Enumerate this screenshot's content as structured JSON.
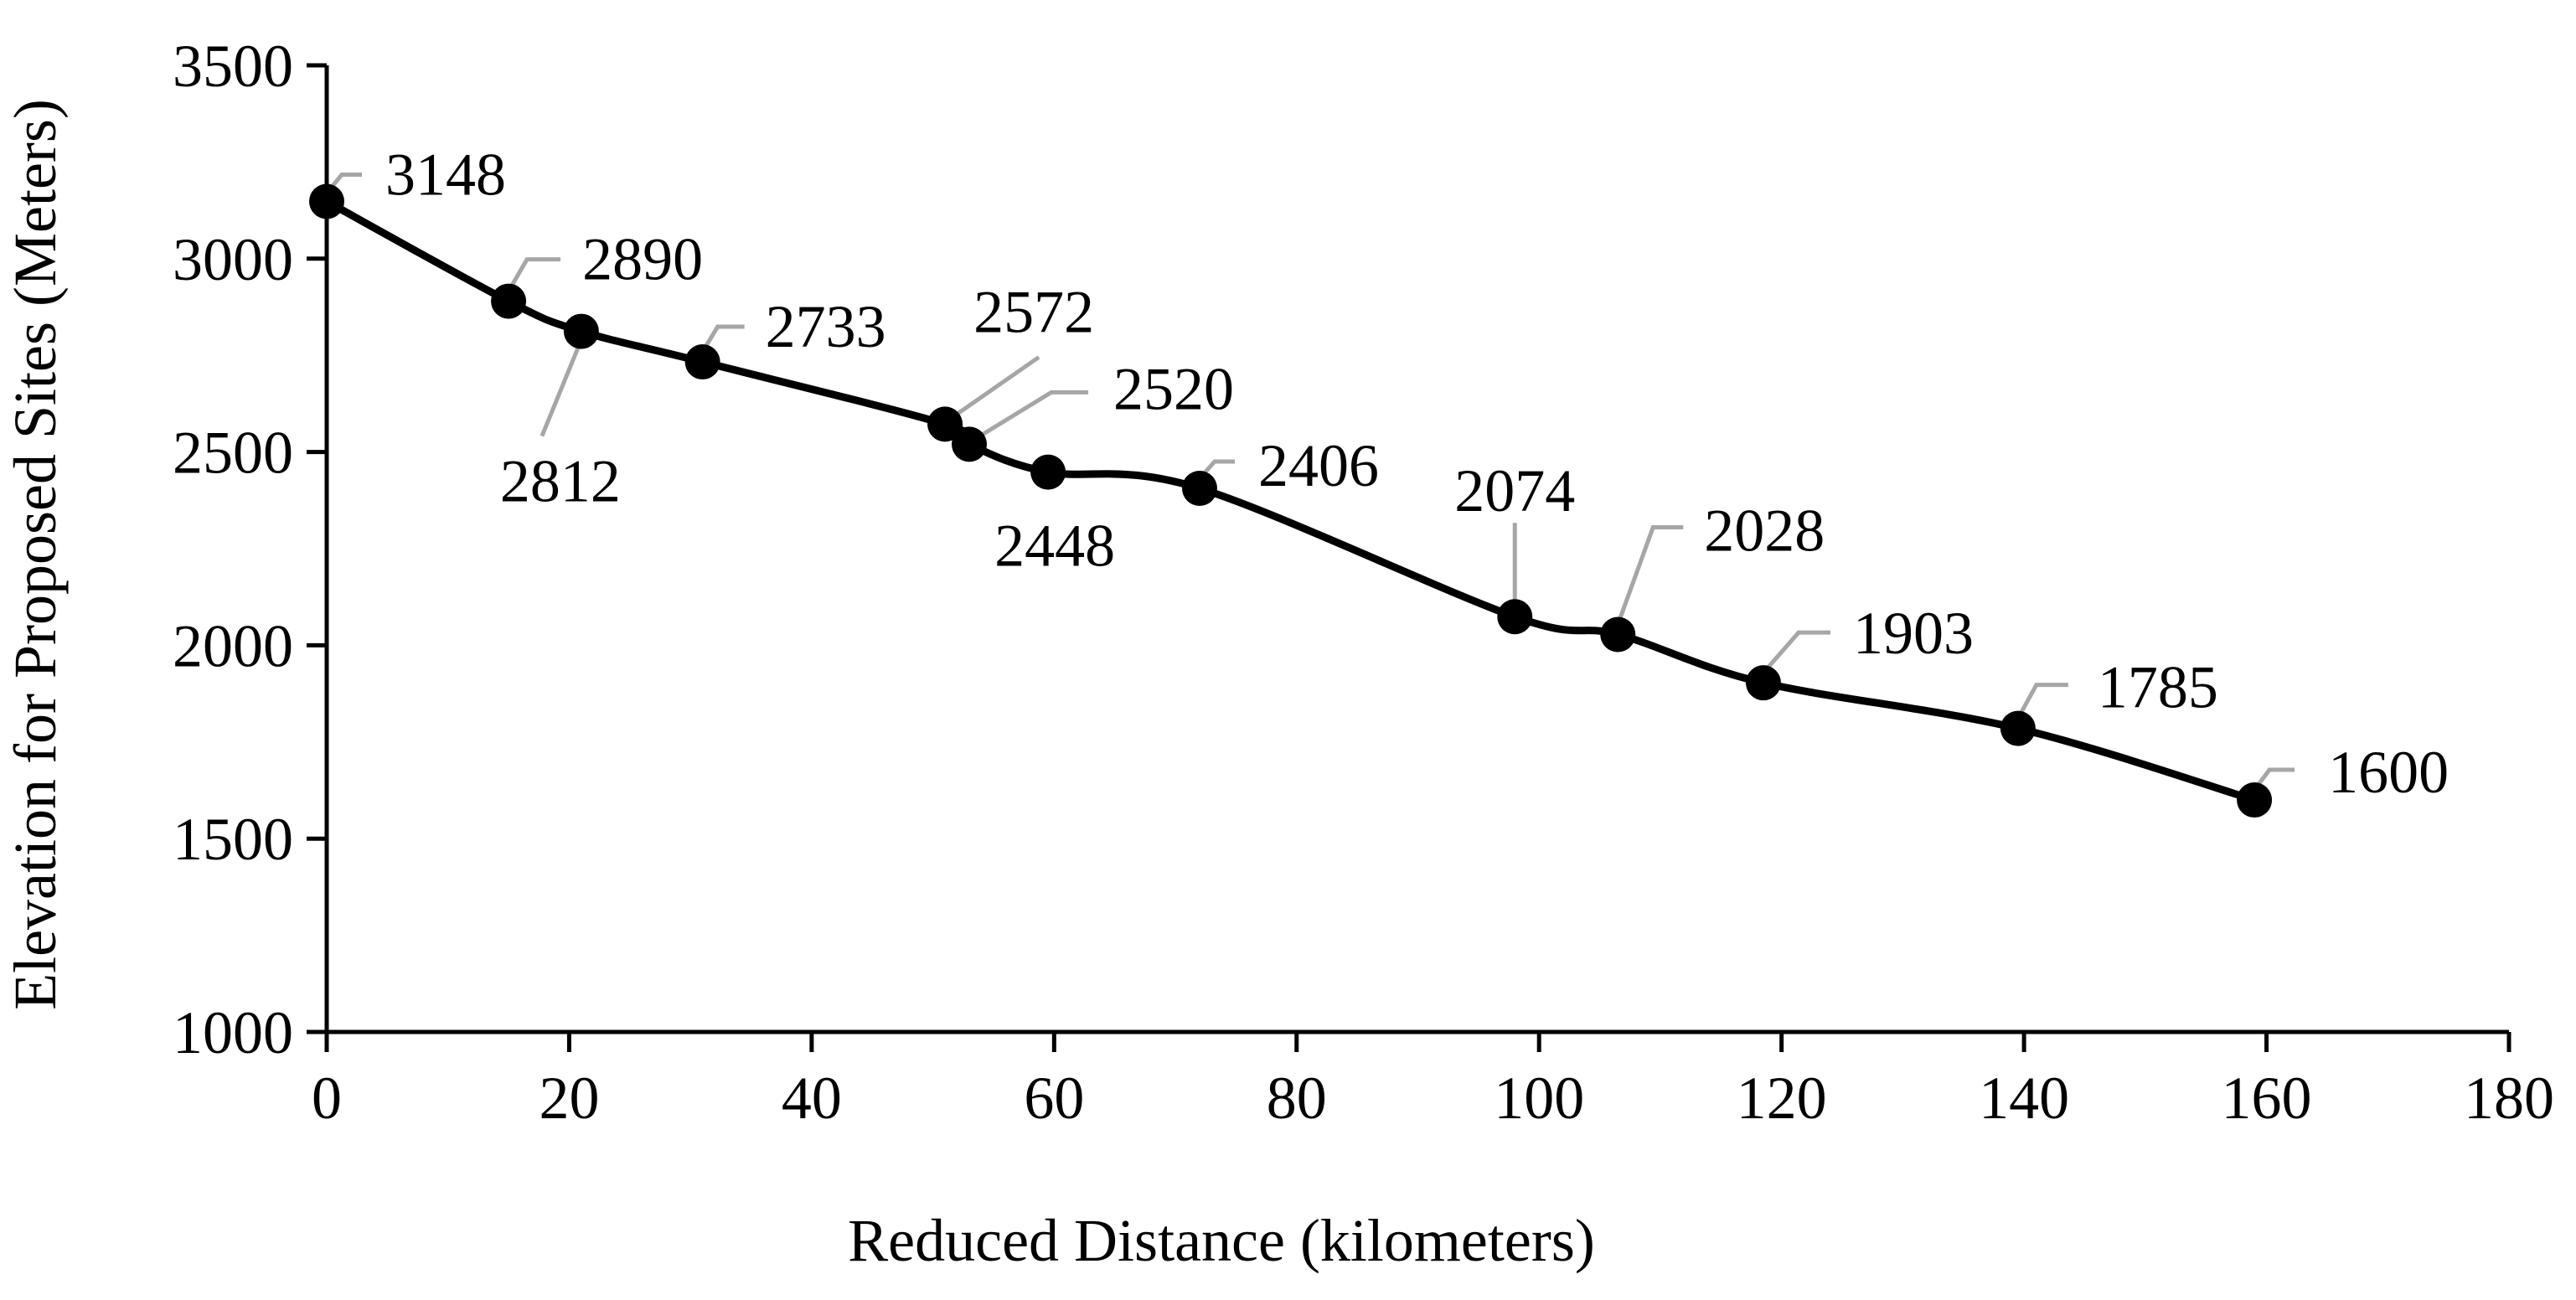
{
  "chart_data": {
    "type": "line",
    "title": "",
    "xlabel": "Reduced Distance (kilometers)",
    "ylabel": "Elevation for Proposed Sites (Meters)",
    "xlim": [
      0,
      180
    ],
    "ylim": [
      1000,
      3500
    ],
    "x_ticks": [
      0,
      20,
      40,
      60,
      80,
      100,
      120,
      140,
      160,
      180
    ],
    "y_ticks": [
      1000,
      1500,
      2000,
      2500,
      3000,
      3500
    ],
    "grid": false,
    "smoothed": true,
    "line_color": "#000000",
    "leader_color": "#A6A6A6",
    "series": [
      {
        "points": [
          {
            "x": 0,
            "y": 3148,
            "label": "3148"
          },
          {
            "x": 15,
            "y": 2890,
            "label": "2890"
          },
          {
            "x": 21,
            "y": 2812,
            "label": "2812"
          },
          {
            "x": 31,
            "y": 2733,
            "label": "2733"
          },
          {
            "x": 51,
            "y": 2572,
            "label": "2572"
          },
          {
            "x": 53,
            "y": 2520,
            "label": "2520"
          },
          {
            "x": 59.5,
            "y": 2448,
            "label": "2448"
          },
          {
            "x": 72,
            "y": 2406,
            "label": "2406"
          },
          {
            "x": 98,
            "y": 2074,
            "label": "2074"
          },
          {
            "x": 106.5,
            "y": 2028,
            "label": "2028"
          },
          {
            "x": 118.5,
            "y": 1903,
            "label": "1903"
          },
          {
            "x": 139.5,
            "y": 1785,
            "label": "1785"
          },
          {
            "x": 159,
            "y": 1600,
            "label": "1600"
          }
        ]
      }
    ]
  }
}
